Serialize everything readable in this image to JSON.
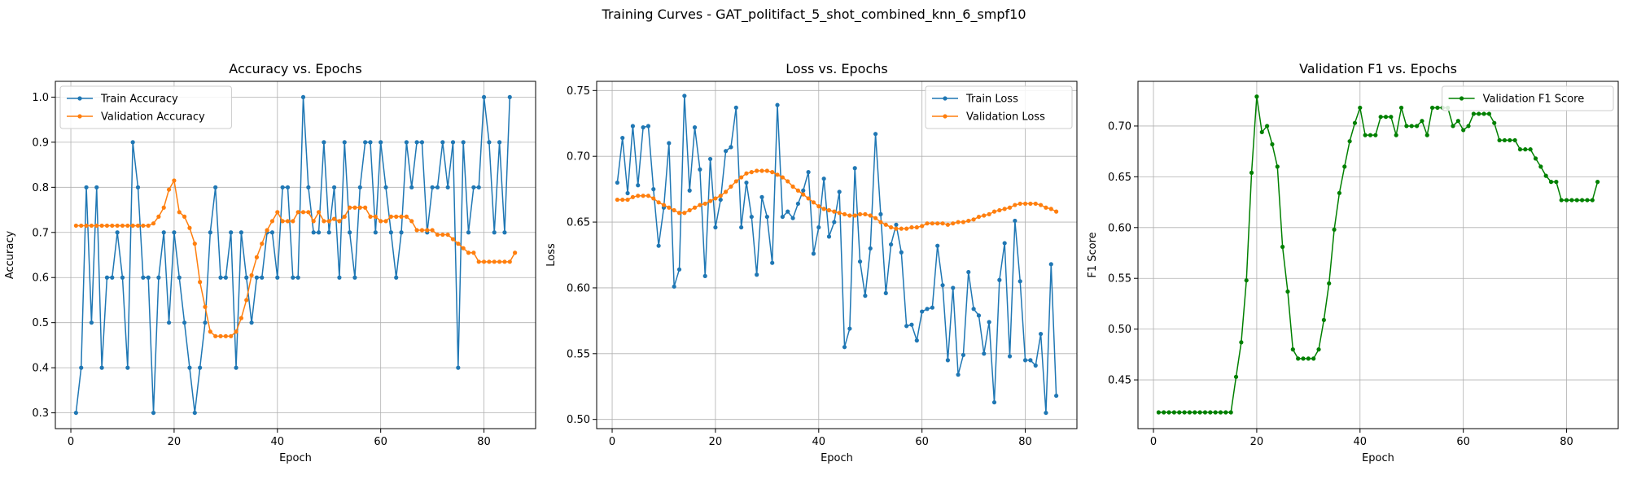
{
  "suptitle": "Training Curves - GAT_politifact_5_shot_combined_knn_6_smpf10",
  "colors": {
    "blue": "#1f77b4",
    "orange": "#ff7f0e",
    "green": "#008000",
    "grid": "#b0b0b0"
  },
  "chart_data": [
    {
      "type": "line",
      "title": "Accuracy vs. Epochs",
      "xlabel": "Epoch",
      "ylabel": "Accuracy",
      "xlim": [
        -3,
        90
      ],
      "ylim": [
        0.265,
        1.035
      ],
      "xticks": [
        0,
        20,
        40,
        60,
        80
      ],
      "yticks": [
        0.3,
        0.4,
        0.5,
        0.6,
        0.7,
        0.8,
        0.9,
        1.0
      ],
      "ytick_labels": [
        "0.3",
        "0.4",
        "0.5",
        "0.6",
        "0.7",
        "0.8",
        "0.9",
        "1.0"
      ],
      "grid": true,
      "legend_loc": "upper-left",
      "series": [
        {
          "name": "Train Accuracy",
          "color": "#1f77b4",
          "values": [
            0.3,
            0.4,
            0.8,
            0.5,
            0.8,
            0.4,
            0.6,
            0.6,
            0.7,
            0.6,
            0.4,
            0.9,
            0.8,
            0.6,
            0.6,
            0.3,
            0.6,
            0.7,
            0.5,
            0.7,
            0.6,
            0.5,
            0.4,
            0.3,
            0.4,
            0.5,
            0.7,
            0.8,
            0.6,
            0.6,
            0.7,
            0.4,
            0.7,
            0.6,
            0.5,
            0.6,
            0.6,
            0.7,
            0.7,
            0.6,
            0.8,
            0.8,
            0.6,
            0.6,
            1.0,
            0.8,
            0.7,
            0.7,
            0.9,
            0.7,
            0.8,
            0.6,
            0.9,
            0.7,
            0.6,
            0.8,
            0.9,
            0.9,
            0.7,
            0.9,
            0.8,
            0.7,
            0.6,
            0.7,
            0.9,
            0.8,
            0.9,
            0.9,
            0.7,
            0.8,
            0.8,
            0.9,
            0.8,
            0.9,
            0.4,
            0.9,
            0.7,
            0.8,
            0.8,
            1.0,
            0.9,
            0.7,
            0.9,
            0.7,
            1.0
          ]
        },
        {
          "name": "Validation Accuracy",
          "color": "#ff7f0e",
          "values": [
            0.715,
            0.715,
            0.715,
            0.715,
            0.715,
            0.715,
            0.715,
            0.715,
            0.715,
            0.715,
            0.715,
            0.715,
            0.715,
            0.715,
            0.715,
            0.72,
            0.735,
            0.755,
            0.795,
            0.815,
            0.745,
            0.735,
            0.71,
            0.675,
            0.59,
            0.535,
            0.48,
            0.47,
            0.47,
            0.47,
            0.47,
            0.48,
            0.51,
            0.55,
            0.605,
            0.645,
            0.675,
            0.705,
            0.725,
            0.745,
            0.725,
            0.725,
            0.725,
            0.745,
            0.745,
            0.745,
            0.725,
            0.745,
            0.725,
            0.725,
            0.73,
            0.725,
            0.735,
            0.755,
            0.755,
            0.755,
            0.755,
            0.735,
            0.735,
            0.725,
            0.725,
            0.735,
            0.735,
            0.735,
            0.735,
            0.725,
            0.705,
            0.705,
            0.705,
            0.705,
            0.695,
            0.695,
            0.695,
            0.685,
            0.675,
            0.665,
            0.655,
            0.655,
            0.635,
            0.635,
            0.635,
            0.635,
            0.635,
            0.635,
            0.635,
            0.655
          ]
        }
      ]
    },
    {
      "type": "line",
      "title": "Loss vs. Epochs",
      "xlabel": "Epoch",
      "ylabel": "Loss",
      "xlim": [
        -3,
        90
      ],
      "ylim": [
        0.493,
        0.757
      ],
      "xticks": [
        0,
        20,
        40,
        60,
        80
      ],
      "yticks": [
        0.5,
        0.55,
        0.6,
        0.65,
        0.7,
        0.75
      ],
      "ytick_labels": [
        "0.50",
        "0.55",
        "0.60",
        "0.65",
        "0.70",
        "0.75"
      ],
      "grid": true,
      "legend_loc": "upper-right",
      "series": [
        {
          "name": "Train Loss",
          "color": "#1f77b4",
          "values": [
            0.68,
            0.714,
            0.672,
            0.723,
            0.678,
            0.722,
            0.723,
            0.675,
            0.632,
            0.661,
            0.71,
            0.601,
            0.614,
            0.746,
            0.674,
            0.722,
            0.69,
            0.609,
            0.698,
            0.646,
            0.667,
            0.704,
            0.707,
            0.737,
            0.646,
            0.68,
            0.654,
            0.61,
            0.669,
            0.654,
            0.619,
            0.739,
            0.654,
            0.658,
            0.653,
            0.664,
            0.674,
            0.688,
            0.626,
            0.646,
            0.683,
            0.639,
            0.65,
            0.673,
            0.555,
            0.569,
            0.691,
            0.62,
            0.594,
            0.63,
            0.717,
            0.656,
            0.596,
            0.633,
            0.648,
            0.627,
            0.571,
            0.572,
            0.56,
            0.582,
            0.584,
            0.585,
            0.632,
            0.602,
            0.545,
            0.6,
            0.534,
            0.549,
            0.612,
            0.584,
            0.579,
            0.55,
            0.574,
            0.513,
            0.606,
            0.634,
            0.548,
            0.651,
            0.605,
            0.545,
            0.545,
            0.541,
            0.565,
            0.505,
            0.618,
            0.518
          ]
        },
        {
          "name": "Validation Loss",
          "color": "#ff7f0e",
          "values": [
            0.667,
            0.667,
            0.667,
            0.669,
            0.67,
            0.67,
            0.67,
            0.668,
            0.665,
            0.663,
            0.661,
            0.659,
            0.657,
            0.657,
            0.659,
            0.661,
            0.663,
            0.664,
            0.666,
            0.668,
            0.67,
            0.673,
            0.677,
            0.681,
            0.684,
            0.687,
            0.688,
            0.689,
            0.689,
            0.689,
            0.688,
            0.686,
            0.684,
            0.681,
            0.677,
            0.674,
            0.671,
            0.668,
            0.665,
            0.662,
            0.66,
            0.659,
            0.658,
            0.657,
            0.656,
            0.655,
            0.655,
            0.656,
            0.656,
            0.655,
            0.653,
            0.65,
            0.648,
            0.646,
            0.645,
            0.645,
            0.645,
            0.646,
            0.646,
            0.647,
            0.649,
            0.649,
            0.649,
            0.649,
            0.648,
            0.649,
            0.65,
            0.65,
            0.651,
            0.652,
            0.654,
            0.655,
            0.656,
            0.658,
            0.659,
            0.66,
            0.661,
            0.663,
            0.664,
            0.664,
            0.664,
            0.664,
            0.663,
            0.661,
            0.66,
            0.658
          ]
        }
      ]
    },
    {
      "type": "line",
      "title": "Validation F1 vs. Epochs",
      "xlabel": "Epoch",
      "ylabel": "F1 Score",
      "xlim": [
        -3,
        90
      ],
      "ylim": [
        0.402,
        0.744
      ],
      "xticks": [
        0,
        20,
        40,
        60,
        80
      ],
      "yticks": [
        0.45,
        0.5,
        0.55,
        0.6,
        0.65,
        0.7
      ],
      "ytick_labels": [
        "0.45",
        "0.50",
        "0.55",
        "0.60",
        "0.65",
        "0.70"
      ],
      "grid": true,
      "legend_loc": "upper-right",
      "series": [
        {
          "name": "Validation F1 Score",
          "color": "#008000",
          "values": [
            0.418,
            0.418,
            0.418,
            0.418,
            0.418,
            0.418,
            0.418,
            0.418,
            0.418,
            0.418,
            0.418,
            0.418,
            0.418,
            0.418,
            0.418,
            0.453,
            0.487,
            0.548,
            0.654,
            0.729,
            0.694,
            0.7,
            0.682,
            0.66,
            0.581,
            0.537,
            0.48,
            0.471,
            0.471,
            0.471,
            0.471,
            0.48,
            0.509,
            0.545,
            0.598,
            0.634,
            0.66,
            0.685,
            0.703,
            0.718,
            0.691,
            0.691,
            0.691,
            0.709,
            0.709,
            0.709,
            0.691,
            0.718,
            0.7,
            0.7,
            0.7,
            0.705,
            0.691,
            0.718,
            0.718,
            0.718,
            0.718,
            0.7,
            0.705,
            0.696,
            0.7,
            0.712,
            0.712,
            0.712,
            0.712,
            0.703,
            0.686,
            0.686,
            0.686,
            0.686,
            0.677,
            0.677,
            0.677,
            0.668,
            0.66,
            0.651,
            0.645,
            0.645,
            0.627,
            0.627,
            0.627,
            0.627,
            0.627,
            0.627,
            0.627,
            0.645
          ]
        }
      ]
    }
  ]
}
